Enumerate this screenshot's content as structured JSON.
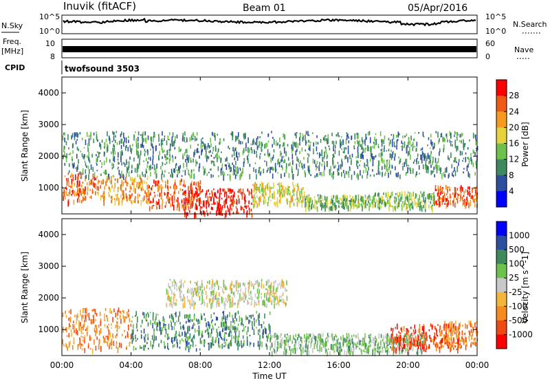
{
  "header": {
    "station": "Inuvik (fitACF)",
    "beam": "Beam 01",
    "date": "05/Apr/2016"
  },
  "summary_panels": {
    "nsky_label": "N.Sky",
    "nsky_ticks": [
      "10^5",
      "10^0"
    ],
    "nsearch_label": "N.Search",
    "nsearch_ticks": [
      "10^5",
      "10^0"
    ],
    "freq_label": "Freq.",
    "freq_unit": "[MHz]",
    "freq_ticks": [
      "10",
      "8"
    ],
    "nave_label": "Nave",
    "nave_ticks": [
      "60",
      "0"
    ],
    "cpid_label": "CPID",
    "cpid_value": "twofsound 3503"
  },
  "colors": {
    "power_scale": [
      "#0000ff",
      "#2d4fa0",
      "#3e8a5e",
      "#6cc24a",
      "#e6d23c",
      "#f59a1e",
      "#f05a14",
      "#ff0000"
    ],
    "velocity_scale": [
      "#ff0000",
      "#f04a14",
      "#f58a1e",
      "#f5b43c",
      "#c8c8c8",
      "#6cc24a",
      "#3e8a5e",
      "#2d4fa0",
      "#0000ff"
    ]
  },
  "chart_data": [
    {
      "type": "heatmap",
      "name": "power",
      "ylabel": "Slant Range [km]",
      "xlabel": "Time UT",
      "x_ticks": [
        "00:00",
        "04:00",
        "08:00",
        "12:00",
        "16:00",
        "20:00",
        "00:00"
      ],
      "xlim_hours": [
        0,
        24
      ],
      "y_ticks": [
        "1000",
        "2000",
        "3000",
        "4000"
      ],
      "ylim_km": [
        180,
        4500
      ],
      "colorbar_label": "Power [dB]",
      "colorbar_ticks": [
        "4",
        "8",
        "12",
        "16",
        "20",
        "24",
        "28"
      ],
      "colorbar_range": [
        0,
        32
      ],
      "scatter_regions_hours_km_level": [
        [
          0.0,
          2.0,
          600,
          1500,
          6
        ],
        [
          2.0,
          5.0,
          600,
          1400,
          5
        ],
        [
          5.0,
          8.0,
          400,
          1300,
          6
        ],
        [
          7.0,
          11.0,
          200,
          1000,
          7
        ],
        [
          11.0,
          14.0,
          500,
          1200,
          4
        ],
        [
          14.0,
          18.0,
          400,
          800,
          3
        ],
        [
          18.0,
          21.5,
          400,
          900,
          3
        ],
        [
          21.5,
          24.0,
          500,
          1100,
          6
        ],
        [
          0.0,
          24.0,
          1400,
          2800,
          2
        ]
      ]
    },
    {
      "type": "heatmap",
      "name": "velocity",
      "ylabel": "Slant Range [km]",
      "xlabel": "Time UT",
      "x_ticks": [
        "00:00",
        "04:00",
        "08:00",
        "12:00",
        "16:00",
        "20:00",
        "00:00"
      ],
      "xlim_hours": [
        0,
        24
      ],
      "y_ticks": [
        "1000",
        "2000",
        "3000",
        "4000"
      ],
      "ylim_km": [
        180,
        4500
      ],
      "colorbar_label": "Velocity [m s^-1]",
      "colorbar_ticks": [
        "1000",
        "500",
        "100",
        "25",
        "-25",
        "-100",
        "-500",
        "-1000"
      ],
      "scatter_regions_hours_km_level": [
        [
          0.0,
          4.0,
          400,
          1700,
          2
        ],
        [
          4.0,
          8.0,
          400,
          1600,
          6
        ],
        [
          8.0,
          12.0,
          500,
          1600,
          6
        ],
        [
          6.0,
          13.0,
          1800,
          2600,
          4
        ],
        [
          12.0,
          17.0,
          300,
          900,
          5
        ],
        [
          17.0,
          21.0,
          300,
          900,
          5
        ],
        [
          19.0,
          23.0,
          400,
          1200,
          1
        ],
        [
          22.0,
          24.0,
          500,
          1300,
          2
        ]
      ]
    }
  ],
  "x_axis_title": "Time UT"
}
